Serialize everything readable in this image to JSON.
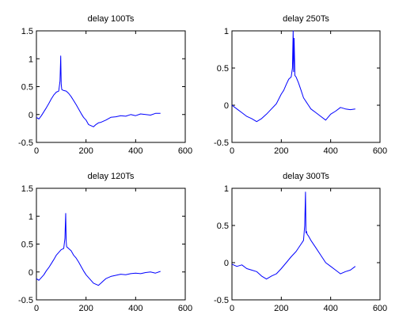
{
  "line_color": "#0000ff",
  "chart_data": [
    {
      "type": "line",
      "title": "delay 100Ts",
      "xlim": [
        0,
        600
      ],
      "ylim": [
        -0.5,
        1.5
      ],
      "xticks": [
        "0",
        "200",
        "400",
        "600"
      ],
      "yticks": [
        "-0.5",
        "0",
        "0.5",
        "1",
        "1.5"
      ],
      "grid": false,
      "series": [
        {
          "x": [
            0,
            10,
            20,
            30,
            40,
            50,
            60,
            70,
            80,
            90,
            95,
            98,
            100,
            102,
            105,
            110,
            120,
            130,
            140,
            150,
            160,
            170,
            180,
            190,
            200,
            210,
            220,
            230,
            240,
            250,
            260,
            280,
            300,
            320,
            340,
            360,
            380,
            400,
            420,
            440,
            460,
            480,
            500
          ],
          "y": [
            -0.05,
            -0.08,
            -0.02,
            0.05,
            0.12,
            0.2,
            0.28,
            0.35,
            0.4,
            0.42,
            0.6,
            1.05,
            0.55,
            0.45,
            0.44,
            0.43,
            0.42,
            0.38,
            0.32,
            0.25,
            0.18,
            0.1,
            0.02,
            -0.05,
            -0.1,
            -0.18,
            -0.2,
            -0.22,
            -0.18,
            -0.15,
            -0.14,
            -0.1,
            -0.05,
            -0.04,
            -0.02,
            -0.03,
            0.0,
            -0.02,
            0.01,
            0.0,
            -0.01,
            0.02,
            0.02
          ]
        }
      ]
    },
    {
      "type": "line",
      "title": "delay 250Ts",
      "xlim": [
        0,
        600
      ],
      "ylim": [
        -0.5,
        1
      ],
      "xticks": [
        "0",
        "200",
        "400",
        "600"
      ],
      "yticks": [
        "-0.5",
        "0",
        "0.5",
        "1"
      ],
      "grid": false,
      "series": [
        {
          "x": [
            0,
            20,
            40,
            60,
            80,
            100,
            120,
            140,
            160,
            180,
            200,
            210,
            220,
            230,
            240,
            245,
            248,
            250,
            252,
            255,
            260,
            270,
            280,
            290,
            300,
            310,
            320,
            340,
            360,
            380,
            400,
            420,
            440,
            460,
            480,
            500
          ],
          "y": [
            0.0,
            -0.05,
            -0.1,
            -0.15,
            -0.18,
            -0.22,
            -0.18,
            -0.12,
            -0.05,
            0.02,
            0.15,
            0.2,
            0.28,
            0.35,
            0.38,
            0.5,
            1.0,
            0.45,
            0.9,
            0.4,
            0.38,
            0.3,
            0.2,
            0.1,
            0.05,
            0.0,
            -0.05,
            -0.1,
            -0.15,
            -0.2,
            -0.12,
            -0.08,
            -0.03,
            -0.05,
            -0.06,
            -0.05
          ]
        }
      ]
    },
    {
      "type": "line",
      "title": "delay 120Ts",
      "xlim": [
        0,
        600
      ],
      "ylim": [
        -0.5,
        1.5
      ],
      "xticks": [
        "0",
        "200",
        "400",
        "600"
      ],
      "yticks": [
        "-0.5",
        "0",
        "0.5",
        "1",
        "1.5"
      ],
      "grid": false,
      "series": [
        {
          "x": [
            0,
            10,
            20,
            30,
            40,
            50,
            60,
            70,
            80,
            90,
            100,
            110,
            115,
            118,
            120,
            122,
            125,
            130,
            140,
            150,
            160,
            170,
            180,
            190,
            200,
            210,
            220,
            230,
            240,
            250,
            260,
            270,
            280,
            300,
            320,
            340,
            360,
            380,
            400,
            420,
            440,
            460,
            480,
            500
          ],
          "y": [
            -0.12,
            -0.15,
            -0.1,
            -0.05,
            0.02,
            0.08,
            0.15,
            0.22,
            0.3,
            0.35,
            0.4,
            0.42,
            0.6,
            1.05,
            0.55,
            0.45,
            0.44,
            0.42,
            0.38,
            0.3,
            0.25,
            0.18,
            0.1,
            0.02,
            -0.05,
            -0.1,
            -0.15,
            -0.2,
            -0.22,
            -0.24,
            -0.2,
            -0.16,
            -0.12,
            -0.08,
            -0.06,
            -0.04,
            -0.05,
            -0.03,
            -0.02,
            -0.03,
            -0.01,
            0.0,
            -0.02,
            0.01
          ]
        }
      ]
    },
    {
      "type": "line",
      "title": "delay 300Ts",
      "xlim": [
        0,
        600
      ],
      "ylim": [
        -0.5,
        1
      ],
      "xticks": [
        "0",
        "200",
        "400",
        "600"
      ],
      "yticks": [
        "-0.5",
        "0",
        "0.5",
        "1"
      ],
      "grid": false,
      "series": [
        {
          "x": [
            0,
            20,
            40,
            60,
            80,
            100,
            120,
            140,
            160,
            180,
            200,
            220,
            240,
            260,
            280,
            290,
            295,
            298,
            300,
            302,
            305,
            310,
            320,
            340,
            360,
            380,
            400,
            420,
            440,
            460,
            480,
            500
          ],
          "y": [
            -0.02,
            -0.05,
            -0.03,
            -0.08,
            -0.1,
            -0.12,
            -0.18,
            -0.22,
            -0.18,
            -0.15,
            -0.08,
            0.0,
            0.08,
            0.15,
            0.25,
            0.3,
            0.5,
            0.95,
            0.4,
            0.42,
            0.38,
            0.36,
            0.3,
            0.2,
            0.1,
            0.0,
            -0.05,
            -0.1,
            -0.15,
            -0.12,
            -0.1,
            -0.05
          ]
        }
      ]
    }
  ]
}
